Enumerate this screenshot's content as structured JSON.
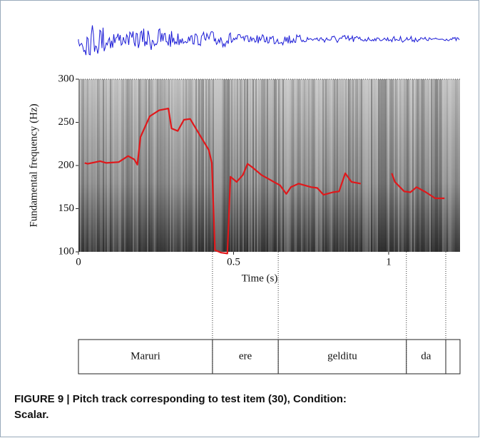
{
  "chart_data": {
    "type": "line",
    "caption": "FIGURE 9 | Pitch track corresponding to test item (30), Condition: Scalar.",
    "x_label": "Time (s)",
    "y_label": "Fundamental frequency (Hz)",
    "x": [
      0.02,
      0.03,
      0.07,
      0.09,
      0.13,
      0.16,
      0.18,
      0.19,
      0.2,
      0.23,
      0.26,
      0.29,
      0.3,
      0.32,
      0.34,
      0.36,
      0.39,
      0.42,
      0.43,
      0.44,
      0.46,
      0.48,
      0.49,
      0.51,
      0.53,
      0.545,
      0.56,
      0.59,
      0.62,
      0.65,
      0.67,
      0.685,
      0.71,
      0.75,
      0.77,
      0.79,
      0.82,
      0.84,
      0.86,
      0.88,
      0.91,
      0.95,
      1.01,
      1.02,
      1.05,
      1.07,
      1.09,
      1.12,
      1.15,
      1.18
    ],
    "values": [
      203,
      202,
      205,
      203,
      204,
      211,
      207,
      201,
      233,
      257,
      264,
      266,
      243,
      240,
      253,
      254,
      236,
      218,
      203,
      102,
      99,
      98,
      187,
      181,
      189,
      202,
      198,
      189,
      183,
      177,
      167,
      175,
      179,
      175,
      174,
      166,
      169,
      170,
      191,
      181,
      179,
      null,
      191,
      181,
      170,
      169,
      175,
      169,
      162,
      162
    ],
    "color": "#e0181b",
    "xlim": [
      0,
      1.23
    ],
    "xticks": [
      0,
      0.5,
      1
    ],
    "ylim": [
      100,
      300
    ],
    "yticks": [
      100,
      150,
      200,
      250,
      300
    ],
    "segments": [
      {
        "label": "Maruri",
        "start": 0,
        "end": 0.432
      },
      {
        "label": "ere",
        "start": 0.432,
        "end": 0.644
      },
      {
        "label": "gelditu",
        "start": 0.644,
        "end": 1.057
      },
      {
        "label": "da",
        "start": 1.057,
        "end": 1.184
      }
    ]
  }
}
